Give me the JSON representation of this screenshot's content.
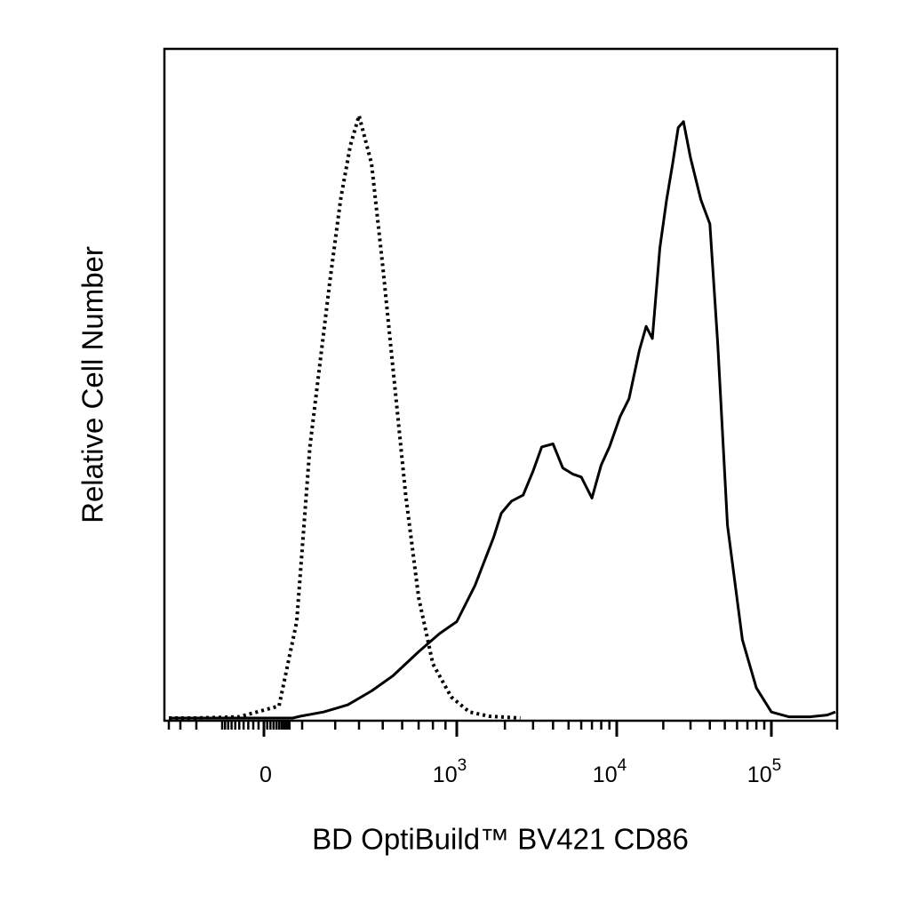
{
  "chart_data": {
    "type": "line",
    "title": "",
    "xlabel": "BD OptiBuild™ BV421 CD86",
    "ylabel": "Relative Cell Number",
    "x_scale": "biexponential",
    "xlim": [
      -400,
      200000
    ],
    "ylim": [
      0,
      100
    ],
    "x_ticks": [
      {
        "base": "0",
        "exp": "",
        "value": 0
      },
      {
        "base": "10",
        "exp": "3",
        "value": 1000
      },
      {
        "base": "10",
        "exp": "4",
        "value": 10000
      },
      {
        "base": "10",
        "exp": "5",
        "value": 100000
      }
    ],
    "grid": false,
    "legend": "none",
    "series": [
      {
        "style": "dotted",
        "color": "#000000",
        "x": [
          -400,
          -200,
          -50,
          50,
          150,
          220,
          280,
          320,
          360,
          400,
          450,
          500,
          560,
          620,
          700,
          800,
          950,
          1200,
          1600,
          2500
        ],
        "y": [
          0,
          0,
          0.2,
          2,
          16,
          45,
          72,
          86,
          95,
          100,
          92,
          75,
          55,
          37,
          20,
          9,
          3.5,
          1,
          0.3,
          0
        ]
      },
      {
        "style": "solid",
        "color": "#000000",
        "x": [
          -400,
          0,
          120,
          180,
          260,
          350,
          450,
          550,
          700,
          850,
          1000,
          1300,
          1700,
          1900,
          2200,
          2600,
          3000,
          3400,
          4000,
          4600,
          5300,
          6000,
          7000,
          8000,
          9000,
          10500,
          12000,
          14000,
          15500,
          17000,
          19000,
          21000,
          23000,
          25000,
          27000,
          30000,
          35000,
          40000,
          45000,
          52000,
          65000,
          80000,
          100000,
          120000,
          150000,
          180000,
          200000
        ],
        "y": [
          0,
          0,
          0,
          0.3,
          1,
          2.2,
          4.5,
          7,
          11,
          14,
          16,
          22,
          30,
          34,
          36,
          37,
          41,
          45,
          45.5,
          41.5,
          40.5,
          40,
          36.5,
          42,
          45,
          50,
          53,
          61,
          65,
          63,
          78,
          86,
          92,
          98,
          99,
          93,
          86,
          82,
          62,
          32,
          13,
          5,
          1,
          0.2,
          0.2,
          0.5,
          1
        ]
      }
    ]
  }
}
